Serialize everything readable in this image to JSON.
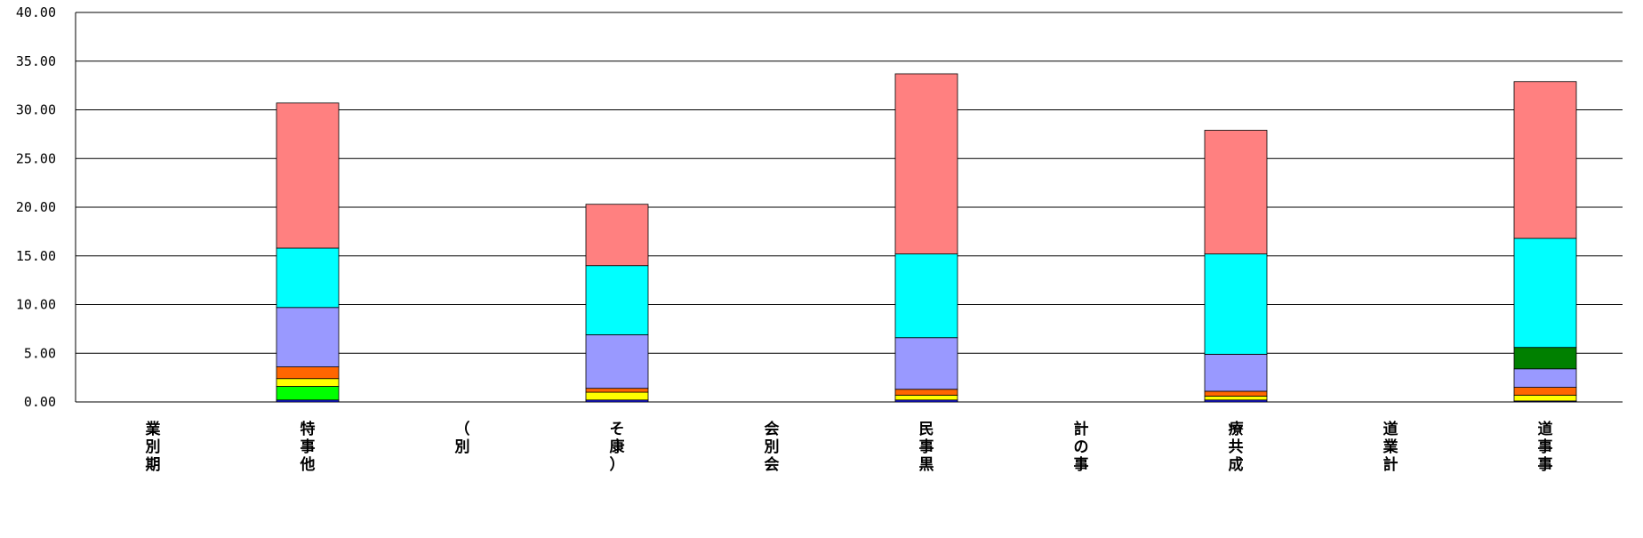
{
  "chart_data": {
    "type": "bar",
    "stacked": true,
    "ylim": [
      0,
      40
    ],
    "ytick_labels": [
      "0.00",
      "5.00",
      "10.00",
      "15.00",
      "20.00",
      "25.00",
      "30.00",
      "35.00",
      "40.00"
    ],
    "grid": true,
    "categories": [
      "業別期",
      "特事他",
      "（別",
      "そ康）",
      "会別会",
      "民事黒",
      "計の事",
      "療共成",
      "道業計",
      "道事事"
    ],
    "series": [
      {
        "color": "#1a1aff",
        "values": [
          0,
          0.2,
          0,
          0.2,
          0,
          0.2,
          0,
          0.2,
          0,
          0.1
        ]
      },
      {
        "color": "#00ff00",
        "values": [
          0,
          1.4,
          0,
          0,
          0,
          0,
          0,
          0,
          0,
          0
        ]
      },
      {
        "color": "#ffff00",
        "values": [
          0,
          0.8,
          0,
          0.8,
          0,
          0.5,
          0,
          0.4,
          0,
          0.6
        ]
      },
      {
        "color": "#ff6600",
        "values": [
          0,
          1.2,
          0,
          0.4,
          0,
          0.6,
          0,
          0.5,
          0,
          0.8
        ]
      },
      {
        "color": "#9999ff",
        "values": [
          0,
          6.1,
          0,
          5.5,
          0,
          5.3,
          0,
          3.8,
          0,
          1.9
        ]
      },
      {
        "color": "#008000",
        "values": [
          0,
          0,
          0,
          0,
          0,
          0,
          0,
          0,
          0,
          2.2
        ]
      },
      {
        "color": "#00ffff",
        "values": [
          0,
          6.1,
          0,
          7.1,
          0,
          8.6,
          0,
          10.3,
          0,
          11.2
        ]
      },
      {
        "color": "#ff8080",
        "values": [
          0,
          14.9,
          0,
          6.3,
          0,
          18.5,
          0,
          12.7,
          0,
          16.1
        ]
      }
    ]
  }
}
